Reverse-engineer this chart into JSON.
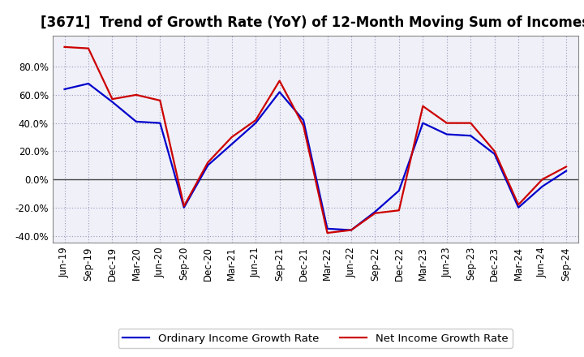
{
  "title": "[3671]  Trend of Growth Rate (YoY) of 12-Month Moving Sum of Incomes",
  "x_labels": [
    "Jun-19",
    "Sep-19",
    "Dec-19",
    "Mar-20",
    "Jun-20",
    "Sep-20",
    "Dec-20",
    "Mar-21",
    "Jun-21",
    "Sep-21",
    "Dec-21",
    "Mar-22",
    "Jun-22",
    "Sep-22",
    "Dec-22",
    "Mar-23",
    "Jun-23",
    "Sep-23",
    "Dec-23",
    "Mar-24",
    "Jun-24",
    "Sep-24"
  ],
  "ordinary_income": [
    0.64,
    0.68,
    0.55,
    0.41,
    0.4,
    -0.2,
    0.1,
    0.25,
    0.4,
    0.62,
    0.42,
    -0.35,
    -0.36,
    -0.23,
    -0.08,
    0.4,
    0.32,
    0.31,
    0.18,
    -0.2,
    -0.05,
    0.06
  ],
  "net_income": [
    0.94,
    0.93,
    0.57,
    0.6,
    0.56,
    -0.19,
    0.12,
    0.3,
    0.42,
    0.7,
    0.38,
    -0.38,
    -0.36,
    -0.24,
    -0.22,
    0.52,
    0.4,
    0.4,
    0.2,
    -0.18,
    0.0,
    0.09
  ],
  "ordinary_color": "#0000cc",
  "net_color": "#cc0000",
  "ylim": [
    -0.45,
    1.02
  ],
  "yticks": [
    -0.4,
    -0.2,
    0.0,
    0.2,
    0.4,
    0.6,
    0.8
  ],
  "background_color": "#ffffff",
  "plot_bg_color": "#f0f0f8",
  "grid_color": "#9999bb",
  "legend_ordinary": "Ordinary Income Growth Rate",
  "legend_net": "Net Income Growth Rate",
  "title_fontsize": 12,
  "axis_fontsize": 8.5,
  "legend_fontsize": 9.5,
  "line_width": 1.6
}
